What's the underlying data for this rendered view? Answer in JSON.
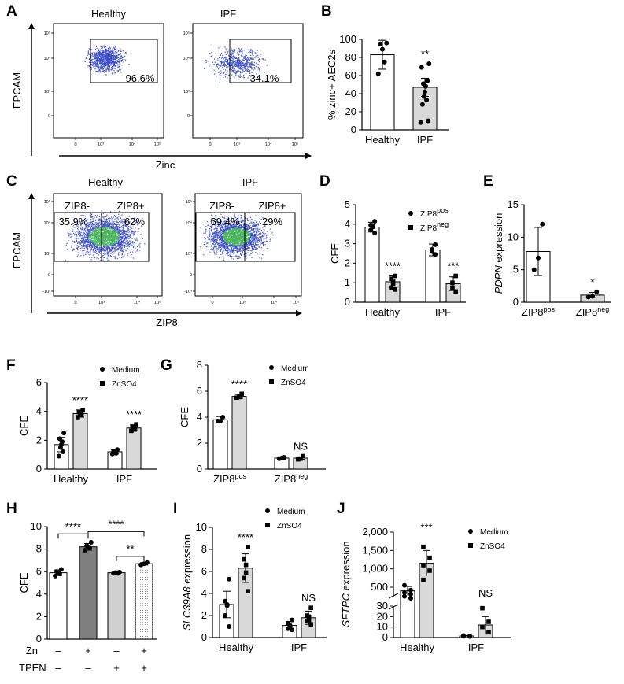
{
  "panel_letters": [
    "A",
    "B",
    "C",
    "D",
    "E",
    "F",
    "G",
    "H",
    "I",
    "J"
  ],
  "colors": {
    "open": "#ffffff",
    "gray": "#d9d9d9",
    "dark_gray": "#7f7f7f",
    "light_gray": "#cccccc",
    "flow": "#3a4bc8",
    "flow_hot": "#49b35c"
  },
  "flow_A": {
    "plots": [
      {
        "title": "Healthy",
        "gate_label": "96.6%"
      },
      {
        "title": "IPF",
        "gate_label": "34.1%"
      }
    ],
    "ylabel": "EPCAM",
    "xlabel": "Zinc",
    "x_ticks": [
      "0",
      "10³",
      "10⁴",
      "10⁵"
    ],
    "y_ticks": [
      "10⁵",
      "10⁴",
      "10³",
      "0"
    ]
  },
  "flow_C": {
    "plots": [
      {
        "title": "Healthy",
        "gates": [
          "ZIP8-",
          "ZIP8+"
        ],
        "pcts": [
          "35.9%",
          "62%"
        ]
      },
      {
        "title": "IPF",
        "gates": [
          "ZIP8-",
          "ZIP8+"
        ],
        "pcts": [
          "69.4%",
          "29%"
        ]
      }
    ],
    "ylabel": "EPCAM",
    "xlabel": "ZIP8",
    "x_ticks": [
      "0",
      "10³",
      "10⁴",
      "10⁵"
    ],
    "y_ticks": [
      "10⁵",
      "10⁴",
      "10³",
      "0",
      "-10³"
    ]
  },
  "chart_data": [
    {
      "panel": "B",
      "type": "bar",
      "ylabel": "% zinc+ AEC2s",
      "categories": [
        "Healthy",
        "IPF"
      ],
      "ylim": [
        0,
        100
      ],
      "yticks": [
        0,
        20,
        40,
        60,
        80,
        100
      ],
      "series": [
        {
          "values": [
            83,
            47
          ],
          "errors": [
            16,
            10
          ],
          "points": [
            [
              96,
              95,
              89,
              75,
              62
            ],
            [
              73,
              69,
              54,
              51,
              48,
              42,
              37,
              33,
              28,
              10,
              8
            ]
          ]
        }
      ],
      "annotations": [
        "",
        "**"
      ]
    },
    {
      "panel": "D",
      "type": "bar",
      "ylabel": "CFE",
      "categories": [
        "Healthy",
        "IPF"
      ],
      "ylim": [
        0,
        5
      ],
      "yticks": [
        0,
        1,
        2,
        3,
        4,
        5
      ],
      "legend": [
        "ZIP8pos",
        "ZIP8neg"
      ],
      "series": [
        {
          "name": "ZIP8pos",
          "values": [
            3.85,
            2.68
          ],
          "errors": [
            0.25,
            0.3
          ],
          "points": [
            [
              4.15,
              3.95,
              3.9,
              3.85,
              3.7,
              3.55
            ],
            [
              2.95,
              2.7,
              2.6,
              2.45
            ]
          ]
        },
        {
          "name": "ZIP8neg",
          "values": [
            1.05,
            0.95
          ],
          "errors": [
            0.3,
            0.35
          ],
          "points": [
            [
              1.35,
              1.2,
              1.05,
              0.95,
              0.75,
              0.65
            ],
            [
              1.35,
              1.0,
              0.75,
              0.55
            ]
          ]
        }
      ],
      "annotations": [
        "****",
        "***"
      ]
    },
    {
      "panel": "E",
      "type": "bar",
      "ylabel": "PDPN expression",
      "categories": [
        "ZIP8pos",
        "ZIP8neg"
      ],
      "ylim": [
        0,
        15
      ],
      "yticks": [
        0,
        5,
        10,
        15
      ],
      "series": [
        {
          "values": [
            7.8,
            1.1
          ],
          "errors": [
            3.7,
            0.4
          ],
          "points": [
            [
              12,
              6.8,
              5
            ],
            [
              1.6,
              0.9,
              0.8
            ]
          ]
        }
      ],
      "annotations": [
        "",
        "*"
      ]
    },
    {
      "panel": "F",
      "type": "bar",
      "ylabel": "CFE",
      "categories": [
        "Healthy",
        "IPF"
      ],
      "ylim": [
        0,
        6
      ],
      "yticks": [
        0,
        2,
        4,
        6
      ],
      "legend": [
        "Medium",
        "ZnSO4"
      ],
      "series": [
        {
          "name": "Medium",
          "values": [
            1.7,
            1.2
          ],
          "errors": [
            0.5,
            0.15
          ],
          "points": [
            [
              2.5,
              2.1,
              1.9,
              1.7,
              1.5,
              1.2,
              0.9
            ],
            [
              1.35,
              1.25,
              1.2,
              1.1,
              1.05
            ]
          ]
        },
        {
          "name": "ZnSO4",
          "values": [
            3.85,
            2.85
          ],
          "errors": [
            0.25,
            0.2
          ],
          "points": [
            [
              4.1,
              3.95,
              3.85,
              3.75,
              3.6
            ],
            [
              3.1,
              2.95,
              2.9,
              2.75,
              2.65
            ]
          ]
        }
      ],
      "annotations": [
        "****",
        "****"
      ]
    },
    {
      "panel": "G",
      "type": "bar",
      "ylabel": "CFE",
      "categories": [
        "ZIP8pos",
        "ZIP8neg"
      ],
      "ylim": [
        0,
        8
      ],
      "yticks": [
        0,
        2,
        4,
        6,
        8
      ],
      "legend": [
        "Medium",
        "ZnSO4"
      ],
      "series": [
        {
          "name": "Medium",
          "values": [
            3.8,
            0.85
          ],
          "errors": [
            0.25,
            0.1
          ],
          "points": [
            [
              4.0,
              3.7,
              3.7
            ],
            [
              0.9,
              0.85,
              0.8
            ]
          ]
        },
        {
          "name": "ZnSO4",
          "values": [
            5.6,
            0.85
          ],
          "errors": [
            0.15,
            0.1
          ],
          "points": [
            [
              5.8,
              5.55,
              5.5
            ],
            [
              1.0,
              0.8,
              0.75
            ]
          ]
        }
      ],
      "annotations": [
        "****",
        "NS"
      ]
    },
    {
      "panel": "H",
      "type": "bar",
      "ylabel": "CFE",
      "categories": [
        "1",
        "2",
        "3",
        "4"
      ],
      "ylim": [
        0,
        10
      ],
      "yticks": [
        0,
        2,
        4,
        6,
        8,
        10
      ],
      "row_labels": [
        "Zn",
        "TPEN"
      ],
      "row_values": [
        [
          "–",
          "+",
          "–",
          "+"
        ],
        [
          "–",
          "–",
          "+",
          "+"
        ]
      ],
      "series": [
        {
          "values": [
            5.9,
            8.2,
            5.9,
            6.7
          ],
          "errors": [
            0.25,
            0.3,
            0.1,
            0.1
          ],
          "points": [
            [
              6.2,
              6.0,
              5.85,
              5.8,
              5.6
            ],
            [
              8.6,
              8.3,
              8.2,
              8.1,
              7.9
            ],
            [
              5.95,
              5.9,
              5.9,
              5.85,
              5.85
            ],
            [
              6.8,
              6.7,
              6.6
            ]
          ]
        }
      ],
      "comparisons": [
        {
          "from": 0,
          "to": 1,
          "label": "****"
        },
        {
          "from": 1,
          "to": 3,
          "label": "****"
        },
        {
          "from": 2,
          "to": 3,
          "label": "**"
        }
      ]
    },
    {
      "panel": "I",
      "type": "bar",
      "ylabel": "SLC39A8 expression",
      "categories": [
        "Healthy",
        "IPF"
      ],
      "ylim": [
        0,
        10
      ],
      "yticks": [
        0,
        2,
        4,
        6,
        8,
        10
      ],
      "legend": [
        "Medium",
        "ZnSO4"
      ],
      "series": [
        {
          "name": "Medium",
          "values": [
            3.0,
            1.1
          ],
          "errors": [
            1.2,
            0.35
          ],
          "points": [
            [
              5.3,
              3.3,
              3.0,
              2.9,
              2.0,
              1.0
            ],
            [
              1.6,
              1.3,
              1.1,
              1.0,
              0.8,
              0.7
            ]
          ]
        },
        {
          "name": "ZnSO4",
          "values": [
            6.3,
            1.8
          ],
          "errors": [
            1.3,
            0.6
          ],
          "points": [
            [
              8.2,
              7.1,
              6.6,
              5.9,
              5.4,
              4.2
            ],
            [
              2.7,
              2.0,
              1.9,
              1.6,
              1.5,
              1.2
            ]
          ]
        }
      ],
      "annotations": [
        "****",
        "NS"
      ]
    },
    {
      "panel": "J",
      "type": "bar",
      "ylabel": "SFTPC expression",
      "categories": [
        "Healthy",
        "IPF"
      ],
      "broken_axis": true,
      "yticks_upper": [
        "500",
        "1,000",
        "1,500",
        "2,000"
      ],
      "yticks_lower": [
        "0",
        "10",
        "20",
        "30"
      ],
      "legend": [
        "Medium",
        "ZnSO4"
      ],
      "series": [
        {
          "name": "Medium",
          "values": [
            400,
            1.5
          ],
          "errors": [
            120,
            0.5
          ],
          "points": [
            [
              550,
              420,
              350,
              310,
              250,
              200
            ],
            [
              2,
              1.5,
              1.2,
              1.0
            ]
          ]
        },
        {
          "name": "ZnSO4",
          "values": [
            1150,
            12
          ],
          "errors": [
            350,
            8
          ],
          "points": [
            [
              1600,
              1300,
              1100,
              950,
              700
            ],
            [
              28,
              15,
              10,
              5
            ]
          ]
        }
      ],
      "annotations": [
        "***",
        "NS"
      ]
    }
  ]
}
